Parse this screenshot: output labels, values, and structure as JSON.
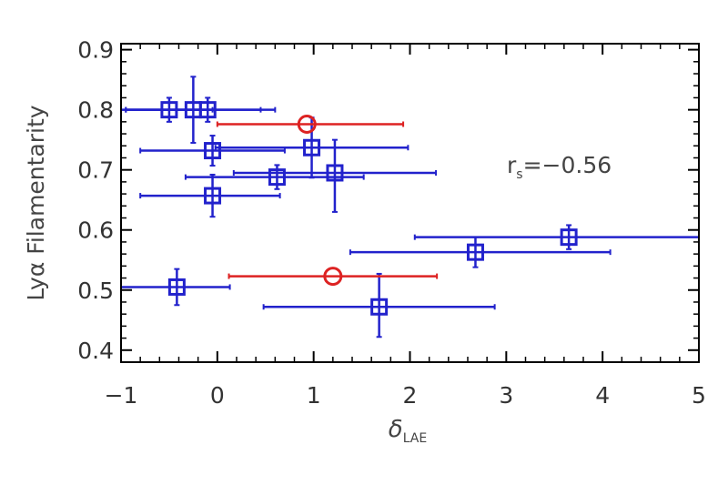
{
  "chart_data": {
    "type": "scatter",
    "xlim": [
      -1,
      5
    ],
    "ylim": [
      0.38,
      0.91
    ],
    "xticks": [
      "−1",
      "0",
      "1",
      "2",
      "3",
      "4",
      "5"
    ],
    "yticks": [
      "0.4",
      "0.5",
      "0.6",
      "0.7",
      "0.8",
      "0.9"
    ],
    "xlabel": {
      "main": "δ",
      "sub": "LAE"
    },
    "ylabel": {
      "main": "Lyα",
      "rest": " Filamentarity"
    },
    "annotation": {
      "main": "r",
      "sub": "s",
      "rest": "=−0.56"
    },
    "colors": {
      "square": "#2222cc",
      "circle": "#dd2222",
      "axis": "#000000"
    },
    "series": [
      {
        "marker": "square",
        "points": [
          {
            "x": -0.5,
            "y": 0.8,
            "xerr": [
              0.45,
              0.45
            ],
            "yerr": [
              0.02,
              0.02
            ]
          },
          {
            "x": -0.25,
            "y": 0.8,
            "xerr": [
              0.7,
              0.7
            ],
            "yerr": [
              0.055,
              0.055
            ]
          },
          {
            "x": -0.1,
            "y": 0.8,
            "xerr": [
              0.9,
              0.7
            ],
            "yerr": [
              0.02,
              0.02
            ]
          },
          {
            "x": -0.05,
            "y": 0.732,
            "xerr": [
              0.75,
              0.75
            ],
            "yerr": [
              0.025,
              0.025
            ]
          },
          {
            "x": -0.05,
            "y": 0.657,
            "xerr": [
              0.75,
              0.7
            ],
            "yerr": [
              0.035,
              0.035
            ]
          },
          {
            "x": 0.62,
            "y": 0.688,
            "xerr": [
              0.95,
              0.9
            ],
            "yerr": [
              0.02,
              0.02
            ]
          },
          {
            "x": 0.98,
            "y": 0.737,
            "xerr": [
              1.0,
              1.0
            ],
            "yerr": [
              0.05,
              0.05
            ]
          },
          {
            "x": 1.22,
            "y": 0.695,
            "xerr": [
              1.05,
              1.05
            ],
            "yerr": [
              0.065,
              0.055
            ]
          },
          {
            "x": 2.68,
            "y": 0.563,
            "xerr": [
              1.3,
              1.4
            ],
            "yerr": [
              0.025,
              0.025
            ]
          },
          {
            "x": 3.65,
            "y": 0.588,
            "xerr": [
              1.6,
              1.35
            ],
            "yerr": [
              0.02,
              0.02
            ]
          },
          {
            "x": -0.42,
            "y": 0.505,
            "xerr": [
              0.6,
              0.55
            ],
            "yerr": [
              0.03,
              0.03
            ]
          },
          {
            "x": 1.68,
            "y": 0.472,
            "xerr": [
              1.2,
              1.2
            ],
            "yerr": [
              0.05,
              0.055
            ]
          }
        ]
      },
      {
        "marker": "circle",
        "points": [
          {
            "x": 0.93,
            "y": 0.776,
            "xerr": [
              0.93,
              1.0
            ],
            "yerr": [
              0.0,
              0.0
            ]
          },
          {
            "x": 1.2,
            "y": 0.523,
            "xerr": [
              1.08,
              1.08
            ],
            "yerr": [
              0.0,
              0.0
            ]
          }
        ]
      }
    ]
  }
}
